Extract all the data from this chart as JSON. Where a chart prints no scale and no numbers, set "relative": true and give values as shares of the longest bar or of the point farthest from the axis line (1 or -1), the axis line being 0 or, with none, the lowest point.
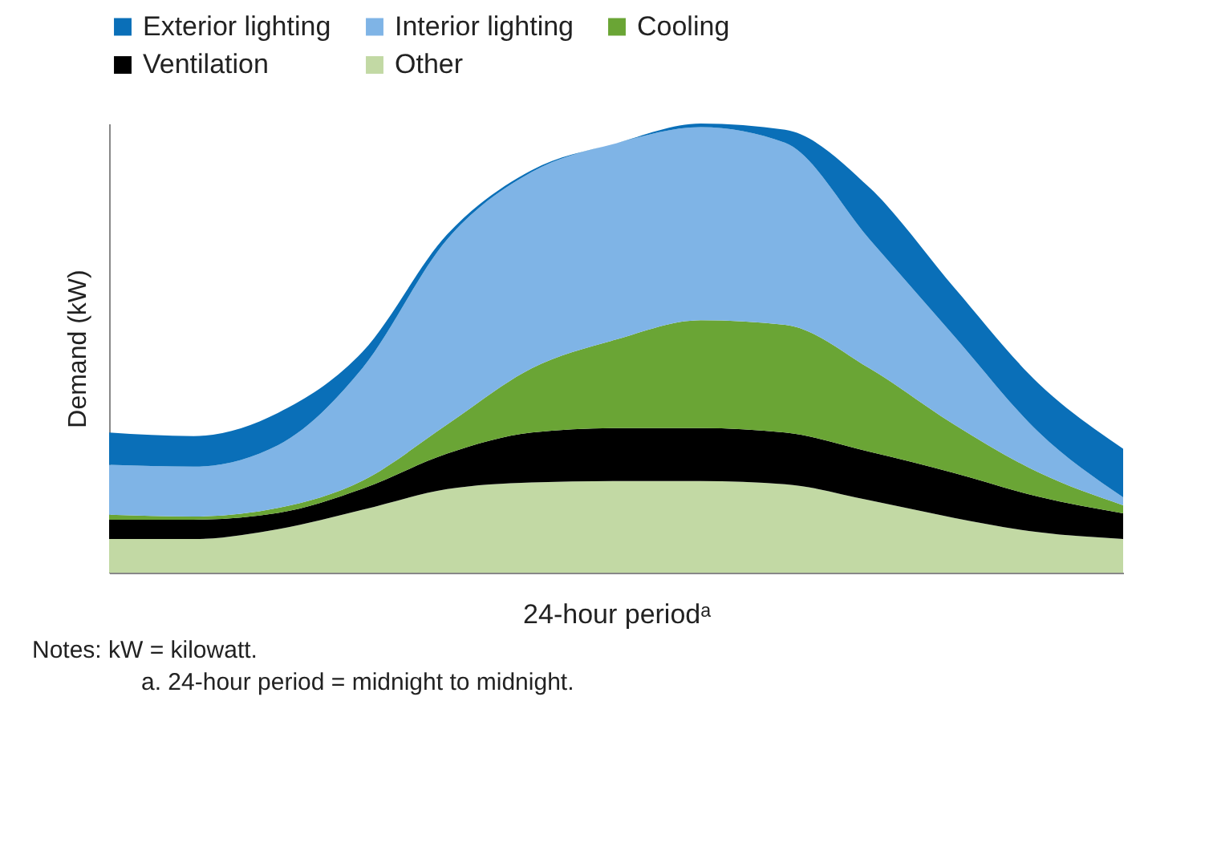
{
  "chart_data": {
    "type": "area",
    "relative": true,
    "stacked": true,
    "legend": "top",
    "tick_labels": false,
    "xlabel": "24-hour periodᵃ",
    "ylabel": "Demand (kW)",
    "annotations": [
      "Notes: kW = kilowatt.",
      "a. 24-hour period = midnight to midnight."
    ],
    "categories": [
      null,
      null,
      null,
      null,
      null,
      null,
      null,
      null,
      null,
      null,
      null,
      null,
      null
    ],
    "series": [
      {
        "name": "Other",
        "color": "#c2d9a4",
        "values": [
          0.075,
          0.075,
          0.097,
          0.14,
          0.186,
          0.201,
          0.204,
          0.204,
          0.197,
          0.161,
          0.122,
          0.09,
          0.075
        ]
      },
      {
        "name": "Ventilation",
        "color": "#000000",
        "values": [
          0.043,
          0.043,
          0.036,
          0.047,
          0.079,
          0.111,
          0.118,
          0.118,
          0.115,
          0.108,
          0.1,
          0.079,
          0.057
        ]
      },
      {
        "name": "Cooling",
        "color": "#6aa535",
        "values": [
          0.011,
          0.007,
          0.011,
          0.018,
          0.065,
          0.143,
          0.197,
          0.24,
          0.24,
          0.186,
          0.108,
          0.054,
          0.018
        ]
      },
      {
        "name": "Interior lighting",
        "color": "#7fb4e6",
        "values": [
          0.111,
          0.111,
          0.14,
          0.251,
          0.412,
          0.437,
          0.437,
          0.43,
          0.405,
          0.287,
          0.197,
          0.09,
          0.018
        ]
      },
      {
        "name": "Exterior lighting",
        "color": "#0a6fb8",
        "values": [
          0.072,
          0.068,
          0.072,
          0.036,
          0.011,
          0.004,
          0,
          0.008,
          0.029,
          0.115,
          0.108,
          0.108,
          0.108
        ]
      }
    ]
  }
}
